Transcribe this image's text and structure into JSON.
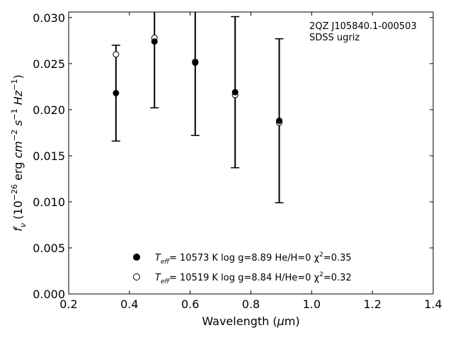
{
  "chart_data": {
    "type": "scatter",
    "title": "",
    "xlabel": "Wavelength (μm)",
    "ylabel": "f_ν (10^-26 erg cm^-2 s^-1 Hz^-1)",
    "xlim": [
      0.2,
      1.4
    ],
    "ylim": [
      0.0,
      0.0306
    ],
    "grid": false,
    "legend_position": "bottom-center",
    "x_ticks": [
      0.2,
      0.4,
      0.6,
      0.8,
      1.0,
      1.2,
      1.4
    ],
    "x_tick_labels": [
      "0.2",
      "0.4",
      "0.6",
      "0.8",
      "1.0",
      "1.2",
      "1.4"
    ],
    "y_ticks": [
      0.0,
      0.005,
      0.01,
      0.015,
      0.02,
      0.025,
      0.03
    ],
    "y_tick_labels": [
      "0.000",
      "0.005",
      "0.010",
      "0.015",
      "0.020",
      "0.025",
      "0.030"
    ],
    "annotation": [
      "2QZ J105840.1-000503",
      "SDSS ugriz"
    ],
    "series": [
      {
        "name": "T_eff= 10573 K  log g=8.89  He/H=0  χ²=0.35",
        "marker": "filled-circle",
        "x": [
          0.3557,
          0.4825,
          0.6166,
          0.748,
          0.8932
        ],
        "y": [
          0.0218,
          0.0274,
          0.0251,
          0.0219,
          0.0188
        ],
        "yerr": [
          0.0052,
          0.0072,
          0.0079,
          0.0082,
          0.0089
        ]
      },
      {
        "name": "T_eff= 10519 K  log g=8.84  H/He=0  χ²=0.32",
        "marker": "open-circle",
        "x": [
          0.3557,
          0.4825,
          0.6166,
          0.748,
          0.8932
        ],
        "y": [
          0.026,
          0.0278,
          0.0252,
          0.0216,
          0.0186
        ]
      }
    ],
    "colors": {
      "marker": "#000000",
      "axes": "#000000"
    }
  }
}
